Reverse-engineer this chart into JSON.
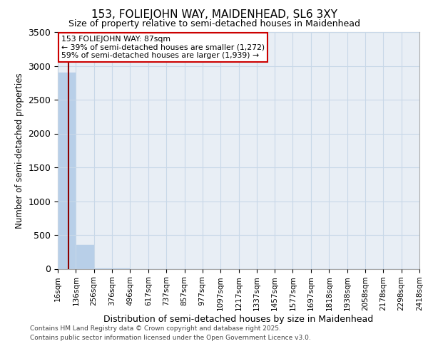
{
  "title": "153, FOLIEJOHN WAY, MAIDENHEAD, SL6 3XY",
  "subtitle": "Size of property relative to semi-detached houses in Maidenhead",
  "xlabel": "Distribution of semi-detached houses by size in Maidenhead",
  "ylabel": "Number of semi-detached properties",
  "annotation_title": "153 FOLIEJOHN WAY: 87sqm",
  "annotation_line1": "← 39% of semi-detached houses are smaller (1,272)",
  "annotation_line2": "59% of semi-detached houses are larger (1,939) →",
  "footer_line1": "Contains HM Land Registry data © Crown copyright and database right 2025.",
  "footer_line2": "Contains public sector information licensed under the Open Government Licence v3.0.",
  "property_size": 87,
  "bar_color": "#b8cfe8",
  "vline_color": "#8b0000",
  "annotation_box_color": "#cc0000",
  "background_color": "#ffffff",
  "plot_bg_color": "#e8eef5",
  "grid_color": "#c8d8e8",
  "bin_edges": [
    16,
    136,
    256,
    376,
    496,
    617,
    737,
    857,
    977,
    1097,
    1217,
    1337,
    1457,
    1577,
    1697,
    1818,
    1938,
    2058,
    2178,
    2298,
    2418
  ],
  "bin_labels": [
    "16sqm",
    "136sqm",
    "256sqm",
    "376sqm",
    "496sqm",
    "617sqm",
    "737sqm",
    "857sqm",
    "977sqm",
    "1097sqm",
    "1217sqm",
    "1337sqm",
    "1457sqm",
    "1577sqm",
    "1697sqm",
    "1818sqm",
    "1938sqm",
    "2058sqm",
    "2178sqm",
    "2298sqm",
    "2418sqm"
  ],
  "bar_heights": [
    2900,
    350,
    4,
    1,
    0,
    0,
    0,
    0,
    0,
    0,
    0,
    0,
    0,
    0,
    0,
    0,
    0,
    0,
    0,
    0
  ],
  "ylim": [
    0,
    3500
  ],
  "yticks": [
    0,
    500,
    1000,
    1500,
    2000,
    2500,
    3000,
    3500
  ]
}
